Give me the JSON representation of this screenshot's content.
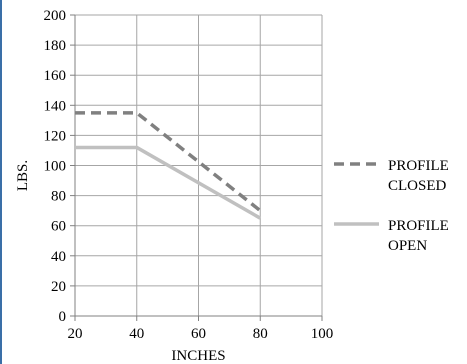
{
  "chart_data": {
    "type": "line",
    "xlabel": "INCHES",
    "ylabel": "LBS.",
    "xlim": [
      20,
      100
    ],
    "ylim": [
      0,
      200
    ],
    "xticks": [
      20,
      40,
      60,
      80,
      100
    ],
    "yticks": [
      0,
      20,
      40,
      60,
      80,
      100,
      120,
      140,
      160,
      180,
      200
    ],
    "grid": true,
    "legend_position": "right",
    "series": [
      {
        "name": "PROFILE CLOSED",
        "legend_lines": [
          "PROFILE",
          "CLOSED"
        ],
        "style": "dashed",
        "color": "#808080",
        "x": [
          20,
          40,
          80
        ],
        "y": [
          135,
          135,
          70
        ]
      },
      {
        "name": "PROFILE OPEN",
        "legend_lines": [
          "PROFILE",
          "OPEN"
        ],
        "style": "solid",
        "color": "#c0c0c0",
        "x": [
          20,
          40,
          80
        ],
        "y": [
          112,
          112,
          65
        ]
      }
    ]
  }
}
